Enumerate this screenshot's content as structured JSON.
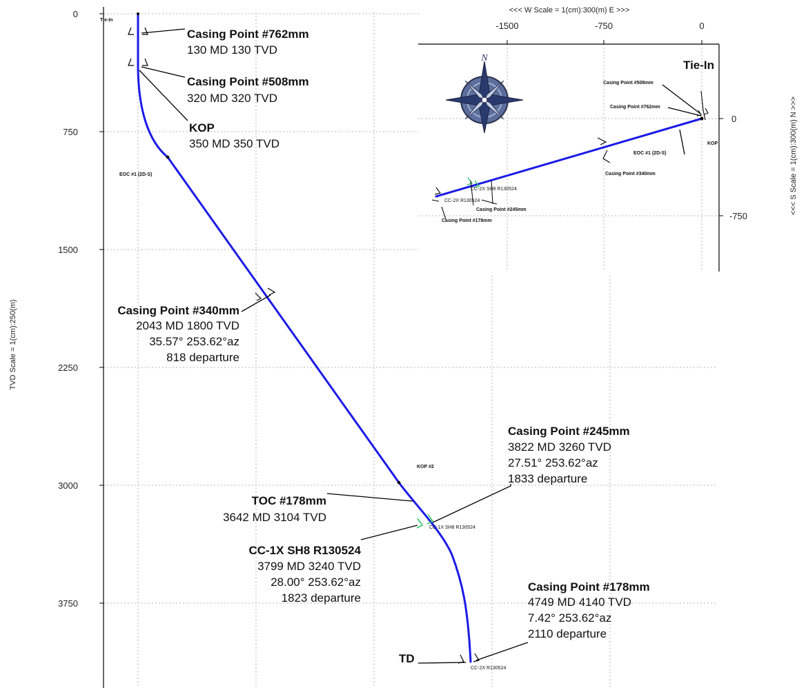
{
  "vertical_section": {
    "axis_title": "TVD Scale = 1(cm):250(m)",
    "tvd_ticks": [
      "0",
      "750",
      "1500",
      "2250",
      "3000",
      "3750"
    ],
    "annotations": {
      "casing_762": {
        "title": "Casing Point #762mm",
        "lines": [
          "130 MD  130 TVD"
        ]
      },
      "casing_508": {
        "title": "Casing Point #508mm",
        "lines": [
          "320 MD  320 TVD"
        ]
      },
      "kop": {
        "title": "KOP",
        "lines": [
          "350 MD  350 TVD"
        ]
      },
      "casing_340": {
        "title": "Casing Point #340mm",
        "lines": [
          "2043 MD  1800 TVD",
          "35.57°  253.62°az",
          "818 departure"
        ]
      },
      "casing_245": {
        "title": "Casing Point #245mm",
        "lines": [
          "3822 MD  3260 TVD",
          "27.51°  253.62°az",
          "1833 departure"
        ]
      },
      "toc_178": {
        "title": "TOC #178mm",
        "lines": [
          "3642 MD  3104 TVD"
        ]
      },
      "cc1x": {
        "title": "CC-1X SH8 R130524",
        "lines": [
          "3799 MD  3240 TVD",
          "28.00°  253.62°az",
          "1823 departure"
        ]
      },
      "casing_178": {
        "title": "Casing Point #178mm",
        "lines": [
          "4749 MD  4140 TVD",
          "7.42°  253.62°az",
          "2110 departure"
        ]
      },
      "td": {
        "title": "TD"
      }
    },
    "small_labels": {
      "tie_in": "Tie-In",
      "eoc1": "EOC #1 (2D-S)",
      "kop2": "KOP #2",
      "cc1x_target": "CC-1X SH8 R130524",
      "cc2x_target": "CC-2X R130524"
    }
  },
  "plan_view": {
    "top_title": "<<<  W   Scale = 1(cm):300(m)   E  >>>",
    "side_title": "<<<  S    Scale = 1(cm):300(m)   N  >>>",
    "x_ticks": [
      "-1500",
      "-750",
      "0"
    ],
    "y_ticks": [
      "0",
      "-750"
    ],
    "labels": {
      "tie_in": "Tie-In",
      "casing_508": "Casing Point #508mm",
      "casing_762": "Casing Point #762mm",
      "kop": "KOP",
      "eoc1": "EOC #1 (2D-S)",
      "casing_340": "Casing Point #340mm",
      "cc2x_sh8": "CC-2X SH8 R130524",
      "cc2x": "CC-2X R130524",
      "cluster": "Casing Point #245mm",
      "casing_178": "Casing Point #178mm"
    },
    "compass_letter": "N"
  },
  "colors": {
    "well_path": "#1a1ae6",
    "target_marker": "#22c55e",
    "compass_fill": "#5c6f9e"
  }
}
